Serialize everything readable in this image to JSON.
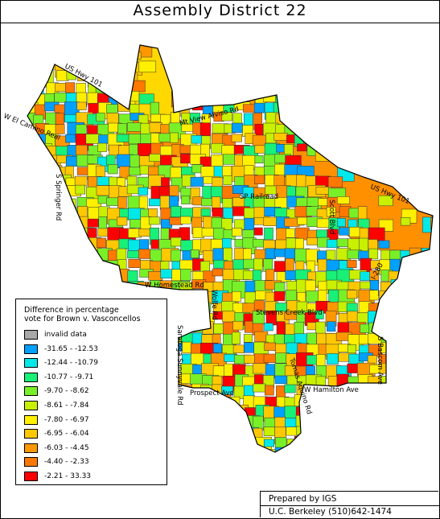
{
  "title": "Assembly District 22",
  "legend": {
    "title_line1": "Difference in percentage",
    "title_line2": "vote for Brown v. Vasconcellos",
    "items": [
      {
        "label": "invalid data",
        "color": "#a8a8a8"
      },
      {
        "label": "-31.65  -  -12.53",
        "color": "#00a0ff"
      },
      {
        "label": "-12.44  -  -10.79",
        "color": "#00e8e8"
      },
      {
        "label": "-10.77  -  -9.71",
        "color": "#18f078"
      },
      {
        "label": "-9.70  -  -8.62",
        "color": "#78f028"
      },
      {
        "label": "-8.61  -  -7.84",
        "color": "#c8f000"
      },
      {
        "label": "-7.80  -  -6.97",
        "color": "#fff000"
      },
      {
        "label": "-6.95  -  -6.04",
        "color": "#ffc800"
      },
      {
        "label": "-6.03  -  -4.45",
        "color": "#ff9800"
      },
      {
        "label": "-4.40  -  -2.33",
        "color": "#ff7800"
      },
      {
        "label": "-2.21  -  33.33",
        "color": "#ff0000"
      }
    ]
  },
  "roads": [
    "US Hwy 101",
    "W El Camino Real",
    "Mt View Alviso Rd",
    "SP Railroad",
    "US Hwy 101",
    "S Springer Rd",
    "Scott Blvd",
    "I-280",
    "W Homestead Rd",
    "Wolfe Rd",
    "Stevens Creek Blvd",
    "Saratoga Sunnyvale Rd",
    "S Bascom Ave",
    "W Hamilton Ave",
    "Prospect Ave",
    "Tomas Aquino Rd"
  ],
  "credit": {
    "line1": "Prepared by IGS",
    "line2": "U.C. Berkeley (510)642-1474"
  }
}
